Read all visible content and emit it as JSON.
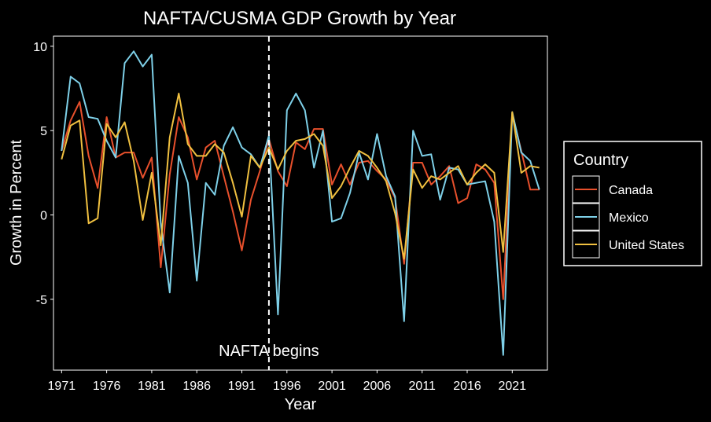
{
  "chart_data": {
    "type": "line",
    "title": "NAFTA/CUSMA GDP Growth by Year",
    "xlabel": "Year",
    "ylabel": "Growth in Percent",
    "xlim": [
      1970.1,
      2024.9
    ],
    "ylim": [
      -9.2,
      10.6
    ],
    "x_ticks": [
      1971,
      1976,
      1981,
      1986,
      1991,
      1996,
      2001,
      2006,
      2011,
      2016,
      2021
    ],
    "y_ticks": [
      10,
      5,
      0,
      -5
    ],
    "y_tick_labels": [
      "10",
      "5",
      "0",
      "-5"
    ],
    "annotation": {
      "text": "NAFTA begins",
      "x": 1994
    },
    "legend": {
      "title": "Country",
      "position": "right"
    },
    "x": [
      1971,
      1972,
      1973,
      1974,
      1975,
      1976,
      1977,
      1978,
      1979,
      1980,
      1981,
      1982,
      1983,
      1984,
      1985,
      1986,
      1987,
      1988,
      1989,
      1990,
      1991,
      1992,
      1993,
      1994,
      1995,
      1996,
      1997,
      1998,
      1999,
      2000,
      2001,
      2002,
      2003,
      2004,
      2005,
      2006,
      2007,
      2008,
      2009,
      2010,
      2011,
      2012,
      2013,
      2014,
      2015,
      2016,
      2017,
      2018,
      2019,
      2020,
      2021,
      2022,
      2023,
      2024
    ],
    "series": [
      {
        "name": "Canada",
        "color": "#e8502c",
        "values": [
          3.8,
          5.6,
          6.7,
          3.5,
          1.6,
          5.8,
          3.4,
          3.7,
          3.7,
          2.2,
          3.4,
          -3.1,
          2.4,
          5.8,
          4.6,
          2.1,
          4.0,
          4.4,
          2.3,
          0.2,
          -2.1,
          0.9,
          2.6,
          4.5,
          2.6,
          1.7,
          4.3,
          3.9,
          5.1,
          5.1,
          1.8,
          3.0,
          1.8,
          3.1,
          3.2,
          2.6,
          2.1,
          1.0,
          -2.9,
          3.1,
          3.1,
          1.8,
          2.3,
          2.9,
          0.7,
          1.0,
          3.0,
          2.7,
          1.9,
          -5.0,
          6.0,
          3.8,
          1.5,
          1.5
        ]
      },
      {
        "name": "Mexico",
        "color": "#7ed0e8",
        "values": [
          3.8,
          8.2,
          7.8,
          5.8,
          5.7,
          4.4,
          3.4,
          9.0,
          9.7,
          8.8,
          9.5,
          -0.5,
          -4.6,
          3.5,
          1.9,
          -3.9,
          1.9,
          1.2,
          4.1,
          5.2,
          4.0,
          3.6,
          2.8,
          4.7,
          -5.9,
          6.2,
          7.2,
          6.2,
          2.8,
          5.0,
          -0.4,
          -0.2,
          1.3,
          3.7,
          2.1,
          4.8,
          2.3,
          1.1,
          -6.3,
          5.0,
          3.5,
          3.6,
          0.9,
          2.8,
          2.7,
          1.8,
          1.9,
          2.0,
          -0.4,
          -8.3,
          6.1,
          3.7,
          3.2,
          1.5
        ]
      },
      {
        "name": "United States",
        "color": "#f0c040",
        "values": [
          3.3,
          5.3,
          5.6,
          -0.5,
          -0.2,
          5.4,
          4.6,
          5.5,
          3.2,
          -0.3,
          2.5,
          -1.8,
          4.6,
          7.2,
          4.2,
          3.5,
          3.5,
          4.2,
          3.7,
          1.9,
          -0.1,
          3.5,
          2.8,
          4.0,
          2.7,
          3.8,
          4.4,
          4.5,
          4.8,
          4.1,
          1.0,
          1.7,
          2.8,
          3.8,
          3.5,
          2.8,
          2.0,
          0.1,
          -2.6,
          2.7,
          1.6,
          2.3,
          2.1,
          2.5,
          2.9,
          1.8,
          2.5,
          3.0,
          2.5,
          -2.2,
          6.1,
          2.5,
          2.9,
          2.8
        ]
      }
    ]
  }
}
